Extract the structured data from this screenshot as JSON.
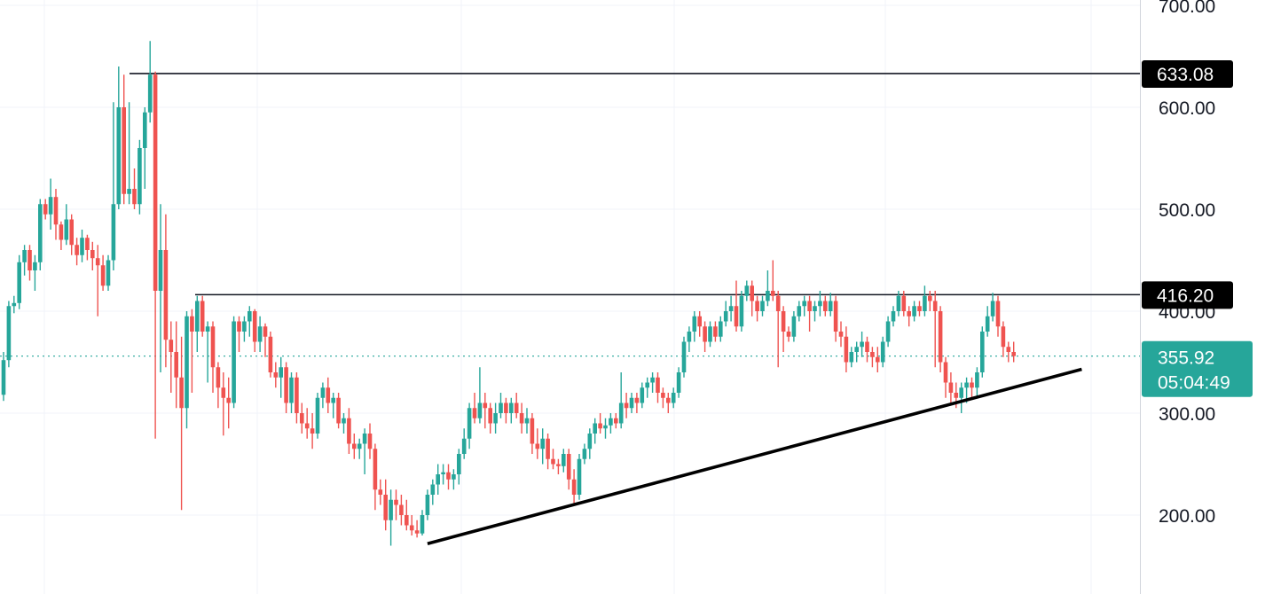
{
  "chart_data": {
    "type": "candlestick",
    "title": "",
    "xlabel": "",
    "ylabel": "",
    "ylim": [
      150,
      710
    ],
    "y_ticks": [
      "200.00",
      "300.00",
      "400.00",
      "500.00",
      "600.00",
      "700.00"
    ],
    "grid": true,
    "colors": {
      "up": "#26a69a",
      "down": "#ef5350",
      "line": "#131722",
      "grid": "#f0f3fa"
    },
    "horizontal_levels": [
      {
        "value": 633.08,
        "label": "633.08"
      },
      {
        "value": 416.2,
        "label": "416.20"
      }
    ],
    "trendline": {
      "start_index": 81,
      "start_value": 172,
      "end_index": 206,
      "end_value": 343
    },
    "current_price": {
      "value": 355.92,
      "label": "355.92",
      "countdown": "05:04:49",
      "color": "#26a69a"
    },
    "ohlc": [
      [
        318,
        360,
        312,
        352
      ],
      [
        352,
        410,
        345,
        405
      ],
      [
        405,
        415,
        398,
        408
      ],
      [
        408,
        455,
        402,
        448
      ],
      [
        448,
        465,
        435,
        460
      ],
      [
        460,
        465,
        430,
        440
      ],
      [
        440,
        455,
        420,
        448
      ],
      [
        448,
        510,
        440,
        505
      ],
      [
        505,
        510,
        490,
        495
      ],
      [
        495,
        530,
        480,
        512
      ],
      [
        512,
        520,
        470,
        485
      ],
      [
        485,
        488,
        460,
        470
      ],
      [
        470,
        505,
        465,
        490
      ],
      [
        490,
        495,
        455,
        465
      ],
      [
        465,
        472,
        445,
        455
      ],
      [
        455,
        480,
        448,
        472
      ],
      [
        472,
        475,
        450,
        460
      ],
      [
        460,
        468,
        440,
        452
      ],
      [
        452,
        465,
        395,
        445
      ],
      [
        445,
        455,
        420,
        425
      ],
      [
        425,
        455,
        420,
        450
      ],
      [
        450,
        605,
        440,
        505
      ],
      [
        505,
        640,
        500,
        600
      ],
      [
        600,
        632,
        505,
        515
      ],
      [
        515,
        605,
        505,
        520
      ],
      [
        520,
        540,
        500,
        505
      ],
      [
        505,
        568,
        495,
        560
      ],
      [
        560,
        600,
        520,
        595
      ],
      [
        595,
        665,
        585,
        632
      ],
      [
        632,
        635,
        275,
        420
      ],
      [
        420,
        505,
        340,
        460
      ],
      [
        460,
        495,
        345,
        372
      ],
      [
        372,
        390,
        320,
        360
      ],
      [
        360,
        390,
        305,
        335
      ],
      [
        335,
        375,
        205,
        305
      ],
      [
        305,
        400,
        285,
        395
      ],
      [
        395,
        402,
        320,
        380
      ],
      [
        380,
        415,
        360,
        410
      ],
      [
        410,
        415,
        375,
        380
      ],
      [
        380,
        390,
        330,
        385
      ],
      [
        385,
        390,
        320,
        345
      ],
      [
        345,
        350,
        305,
        325
      ],
      [
        325,
        340,
        278,
        315
      ],
      [
        315,
        335,
        285,
        310
      ],
      [
        310,
        395,
        305,
        390
      ],
      [
        390,
        395,
        360,
        380
      ],
      [
        380,
        395,
        370,
        390
      ],
      [
        390,
        405,
        375,
        400
      ],
      [
        400,
        402,
        360,
        370
      ],
      [
        370,
        395,
        360,
        385
      ],
      [
        385,
        388,
        355,
        375
      ],
      [
        375,
        380,
        335,
        340
      ],
      [
        340,
        350,
        325,
        335
      ],
      [
        335,
        355,
        315,
        345
      ],
      [
        345,
        350,
        300,
        310
      ],
      [
        310,
        340,
        300,
        335
      ],
      [
        335,
        340,
        290,
        300
      ],
      [
        300,
        310,
        280,
        290
      ],
      [
        290,
        305,
        275,
        285
      ],
      [
        285,
        300,
        265,
        280
      ],
      [
        280,
        320,
        275,
        315
      ],
      [
        315,
        330,
        305,
        325
      ],
      [
        325,
        335,
        300,
        310
      ],
      [
        310,
        320,
        295,
        315
      ],
      [
        315,
        320,
        285,
        290
      ],
      [
        290,
        300,
        280,
        295
      ],
      [
        295,
        305,
        260,
        270
      ],
      [
        270,
        280,
        255,
        265
      ],
      [
        265,
        275,
        255,
        270
      ],
      [
        270,
        285,
        240,
        280
      ],
      [
        280,
        290,
        255,
        265
      ],
      [
        265,
        270,
        205,
        225
      ],
      [
        225,
        235,
        210,
        220
      ],
      [
        220,
        235,
        185,
        195
      ],
      [
        195,
        225,
        170,
        215
      ],
      [
        215,
        225,
        195,
        210
      ],
      [
        210,
        220,
        190,
        200
      ],
      [
        200,
        215,
        185,
        190
      ],
      [
        190,
        200,
        180,
        185
      ],
      [
        185,
        195,
        178,
        182
      ],
      [
        182,
        205,
        180,
        200
      ],
      [
        200,
        225,
        195,
        220
      ],
      [
        220,
        235,
        210,
        230
      ],
      [
        230,
        250,
        220,
        240
      ],
      [
        240,
        250,
        230,
        242
      ],
      [
        242,
        250,
        225,
        235
      ],
      [
        235,
        245,
        225,
        240
      ],
      [
        240,
        265,
        230,
        260
      ],
      [
        260,
        285,
        255,
        275
      ],
      [
        275,
        310,
        265,
        305
      ],
      [
        305,
        320,
        290,
        295
      ],
      [
        295,
        345,
        290,
        310
      ],
      [
        310,
        320,
        285,
        305
      ],
      [
        305,
        310,
        280,
        290
      ],
      [
        290,
        310,
        280,
        300
      ],
      [
        300,
        320,
        295,
        310
      ],
      [
        310,
        315,
        290,
        300
      ],
      [
        300,
        315,
        290,
        310
      ],
      [
        310,
        320,
        295,
        300
      ],
      [
        300,
        310,
        280,
        290
      ],
      [
        290,
        305,
        280,
        295
      ],
      [
        295,
        300,
        260,
        270
      ],
      [
        270,
        285,
        255,
        265
      ],
      [
        265,
        285,
        250,
        275
      ],
      [
        275,
        280,
        245,
        255
      ],
      [
        255,
        265,
        245,
        250
      ],
      [
        250,
        255,
        240,
        248
      ],
      [
        248,
        265,
        242,
        260
      ],
      [
        260,
        265,
        225,
        235
      ],
      [
        235,
        245,
        210,
        220
      ],
      [
        220,
        260,
        215,
        255
      ],
      [
        255,
        270,
        250,
        265
      ],
      [
        265,
        285,
        255,
        280
      ],
      [
        280,
        295,
        270,
        290
      ],
      [
        290,
        300,
        280,
        285
      ],
      [
        285,
        295,
        275,
        288
      ],
      [
        288,
        300,
        280,
        295
      ],
      [
        295,
        300,
        285,
        290
      ],
      [
        290,
        340,
        285,
        310
      ],
      [
        310,
        320,
        295,
        305
      ],
      [
        305,
        320,
        300,
        315
      ],
      [
        315,
        320,
        300,
        310
      ],
      [
        310,
        330,
        305,
        325
      ],
      [
        325,
        335,
        315,
        330
      ],
      [
        330,
        340,
        320,
        335
      ],
      [
        335,
        340,
        310,
        320
      ],
      [
        320,
        325,
        305,
        315
      ],
      [
        315,
        320,
        300,
        310
      ],
      [
        310,
        325,
        305,
        320
      ],
      [
        320,
        345,
        315,
        340
      ],
      [
        340,
        375,
        335,
        370
      ],
      [
        370,
        385,
        360,
        380
      ],
      [
        380,
        400,
        370,
        395
      ],
      [
        395,
        400,
        375,
        385
      ],
      [
        385,
        390,
        360,
        370
      ],
      [
        370,
        390,
        365,
        385
      ],
      [
        385,
        390,
        370,
        375
      ],
      [
        375,
        395,
        370,
        390
      ],
      [
        390,
        410,
        385,
        400
      ],
      [
        400,
        415,
        390,
        405
      ],
      [
        405,
        430,
        380,
        385
      ],
      [
        385,
        420,
        380,
        415
      ],
      [
        415,
        430,
        410,
        425
      ],
      [
        425,
        430,
        395,
        410
      ],
      [
        410,
        415,
        390,
        400
      ],
      [
        400,
        415,
        395,
        410
      ],
      [
        410,
        440,
        405,
        420
      ],
      [
        420,
        450,
        410,
        415
      ],
      [
        415,
        420,
        345,
        400
      ],
      [
        400,
        405,
        360,
        380
      ],
      [
        380,
        385,
        370,
        375
      ],
      [
        375,
        400,
        370,
        395
      ],
      [
        395,
        410,
        390,
        405
      ],
      [
        405,
        415,
        395,
        410
      ],
      [
        410,
        415,
        380,
        400
      ],
      [
        400,
        410,
        390,
        405
      ],
      [
        405,
        420,
        395,
        410
      ],
      [
        410,
        415,
        395,
        400
      ],
      [
        400,
        418,
        395,
        410
      ],
      [
        410,
        415,
        370,
        380
      ],
      [
        380,
        390,
        365,
        375
      ],
      [
        375,
        385,
        340,
        350
      ],
      [
        350,
        365,
        345,
        360
      ],
      [
        360,
        370,
        350,
        365
      ],
      [
        365,
        380,
        355,
        370
      ],
      [
        370,
        375,
        350,
        360
      ],
      [
        360,
        365,
        345,
        355
      ],
      [
        355,
        365,
        340,
        350
      ],
      [
        350,
        375,
        345,
        370
      ],
      [
        370,
        395,
        365,
        390
      ],
      [
        390,
        405,
        385,
        400
      ],
      [
        400,
        420,
        395,
        415
      ],
      [
        415,
        420,
        395,
        400
      ],
      [
        400,
        405,
        385,
        395
      ],
      [
        395,
        410,
        390,
        405
      ],
      [
        405,
        410,
        395,
        400
      ],
      [
        400,
        425,
        395,
        415
      ],
      [
        415,
        420,
        400,
        410
      ],
      [
        410,
        420,
        345,
        400
      ],
      [
        400,
        405,
        340,
        350
      ],
      [
        350,
        355,
        315,
        330
      ],
      [
        330,
        340,
        310,
        320
      ],
      [
        320,
        330,
        305,
        315
      ],
      [
        315,
        330,
        300,
        325
      ],
      [
        325,
        335,
        310,
        330
      ],
      [
        330,
        335,
        315,
        325
      ],
      [
        325,
        345,
        315,
        340
      ],
      [
        340,
        385,
        335,
        380
      ],
      [
        380,
        405,
        375,
        395
      ],
      [
        395,
        418,
        390,
        410
      ],
      [
        410,
        415,
        375,
        385
      ],
      [
        385,
        390,
        355,
        365
      ],
      [
        365,
        370,
        350,
        360
      ],
      [
        360,
        370,
        350,
        356
      ]
    ]
  }
}
